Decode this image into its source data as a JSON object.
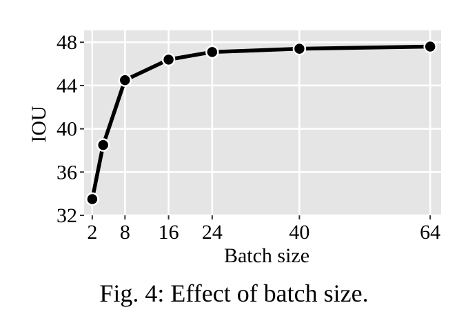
{
  "caption": "Fig. 4: Effect of batch size.",
  "chart_data": {
    "type": "line",
    "xlabel": "Batch size",
    "ylabel": "IOU",
    "x": [
      2,
      4,
      8,
      16,
      24,
      40,
      64
    ],
    "series": [
      {
        "values": [
          33.5,
          38.5,
          44.5,
          46.4,
          47.1,
          47.4,
          47.6
        ]
      }
    ],
    "xticks": [
      2,
      8,
      16,
      24,
      40,
      64
    ],
    "yticks": [
      32,
      36,
      40,
      44,
      48
    ],
    "xlim": [
      0.5,
      66
    ],
    "ylim": [
      32,
      49.1
    ],
    "grid": true,
    "colors": {
      "panel": "#e5e5e5",
      "grid": "#ffffff",
      "line": "#000000",
      "marker_edge": "#ffffff"
    }
  }
}
